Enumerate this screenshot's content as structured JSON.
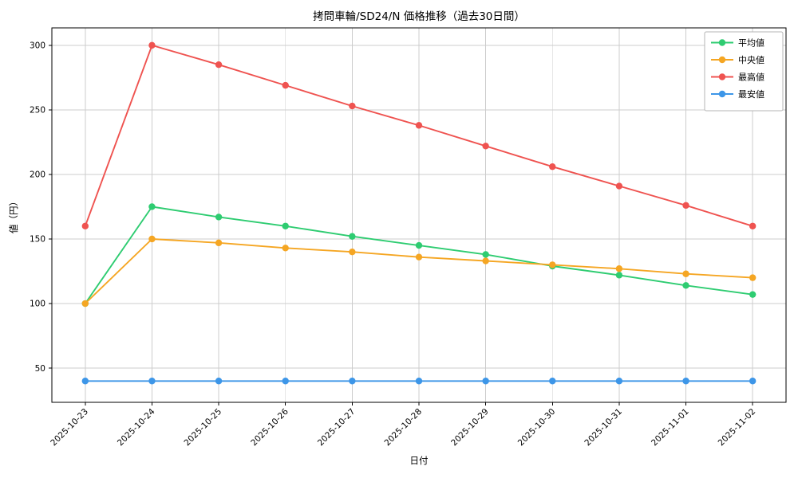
{
  "figure": {
    "title": "拷問車輪/SD24/N 価格推移（過去30日間）",
    "xlabel": "日付",
    "ylabel": "値（円）"
  },
  "chart_data": {
    "type": "line",
    "title": "拷問車輪/SD24/N 価格推移（過去30日間）",
    "xlabel": "日付",
    "ylabel": "値（円）",
    "categories": [
      "2025-10-23",
      "2025-10-24",
      "2025-10-25",
      "2025-10-26",
      "2025-10-27",
      "2025-10-28",
      "2025-10-29",
      "2025-10-30",
      "2025-10-31",
      "2025-11-01",
      "2025-11-02"
    ],
    "series": [
      {
        "name": "平均値",
        "color": "#2ecc71",
        "values": [
          100,
          175,
          167,
          160,
          152,
          145,
          138,
          129,
          122,
          114,
          107
        ]
      },
      {
        "name": "中央値",
        "color": "#f5a623",
        "values": [
          100,
          150,
          147,
          143,
          140,
          136,
          133,
          130,
          127,
          123,
          120
        ]
      },
      {
        "name": "最高値",
        "color": "#ef5350",
        "values": [
          160,
          300,
          285,
          269,
          253,
          238,
          222,
          206,
          191,
          176,
          160
        ]
      },
      {
        "name": "最安値",
        "color": "#3d96e8",
        "values": [
          40,
          40,
          40,
          40,
          40,
          40,
          40,
          40,
          40,
          40,
          40
        ]
      }
    ],
    "ylim": [
      23.5,
      313.5
    ],
    "yticks": [
      50,
      100,
      150,
      200,
      250,
      300
    ],
    "grid": true,
    "legend_position": "upper right",
    "colors": {
      "grid": "#cccccc",
      "frame": "#000000",
      "legend_border": "#b5b5b5",
      "background": "#ffffff"
    }
  }
}
